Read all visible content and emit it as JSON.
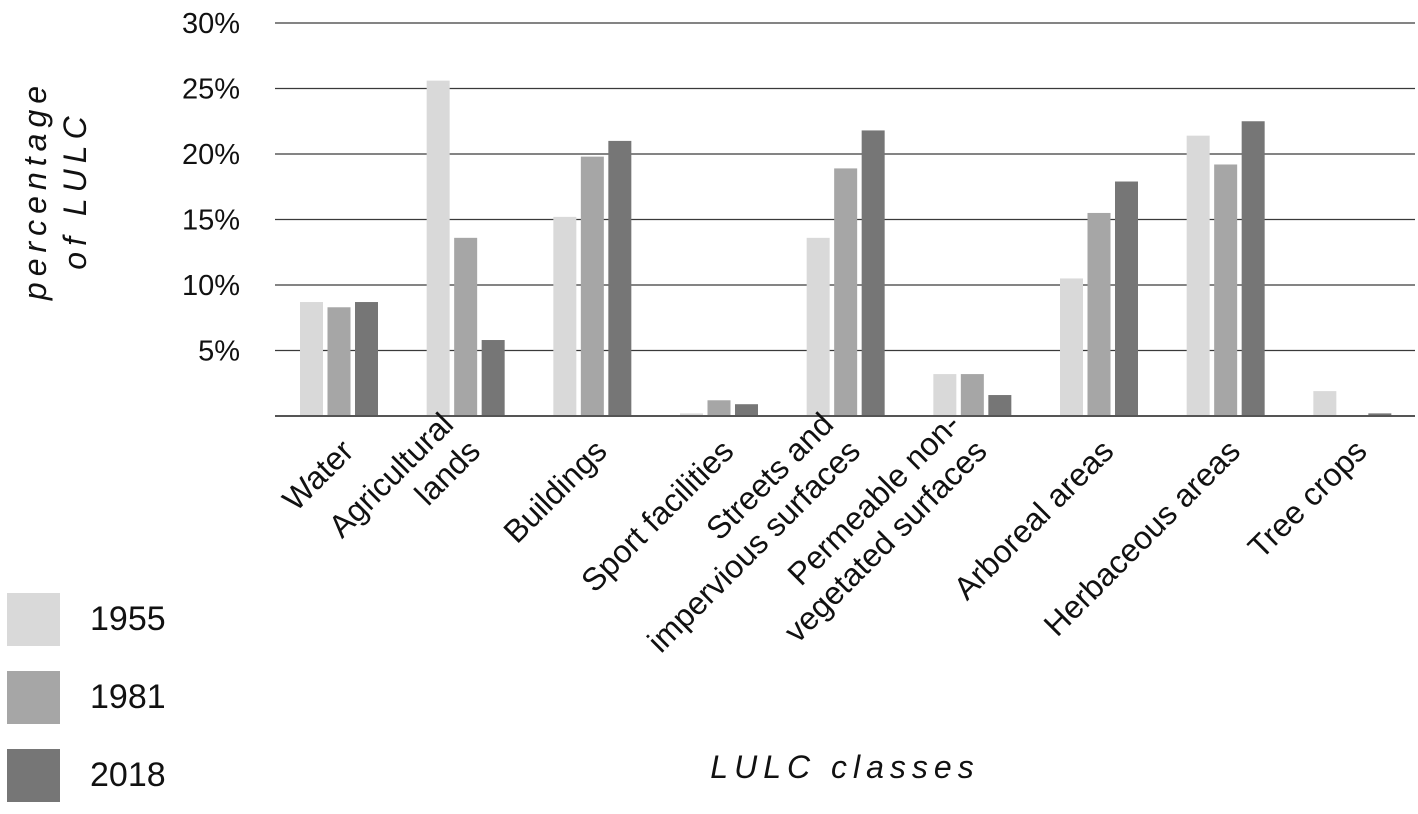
{
  "chart_data": {
    "type": "bar",
    "title": "",
    "xlabel": "LULC classes",
    "ylabel": "percentage of LULC",
    "ylabel_lines": [
      "percentage",
      "of LULC"
    ],
    "ylim": [
      0,
      30
    ],
    "yticks": [
      5,
      10,
      15,
      20,
      25,
      30
    ],
    "ytick_labels": [
      "5%",
      "10%",
      "15%",
      "20%",
      "25%",
      "30%"
    ],
    "grid": true,
    "legend_position": "bottom-left",
    "categories": [
      "Water",
      "Agricultural lands",
      "Buildings",
      "Sport facilities",
      "Streets and impervious surfaces",
      "Permeable non-vegetated surfaces",
      "Arboreal areas",
      "Herbaceous areas",
      "Tree crops"
    ],
    "category_label_lines": [
      [
        "Water"
      ],
      [
        "Agricultural",
        "lands"
      ],
      [
        "Buildings"
      ],
      [
        "Sport facilities"
      ],
      [
        "Streets and",
        "impervious surfaces"
      ],
      [
        "Permeable non-",
        "vegetated surfaces"
      ],
      [
        "Arboreal areas"
      ],
      [
        "Herbaceous areas"
      ],
      [
        "Tree crops"
      ]
    ],
    "series": [
      {
        "name": "1955",
        "color": "#d9d9d9",
        "values": [
          8.7,
          25.6,
          15.2,
          0.2,
          13.6,
          3.2,
          10.5,
          21.4,
          1.9
        ]
      },
      {
        "name": "1981",
        "color": "#a6a6a6",
        "values": [
          8.3,
          13.6,
          19.8,
          1.2,
          18.9,
          3.2,
          15.5,
          19.2,
          0.0
        ]
      },
      {
        "name": "2018",
        "color": "#767676",
        "values": [
          8.7,
          5.8,
          21.0,
          0.9,
          21.8,
          1.6,
          17.9,
          22.5,
          0.2
        ]
      }
    ]
  }
}
